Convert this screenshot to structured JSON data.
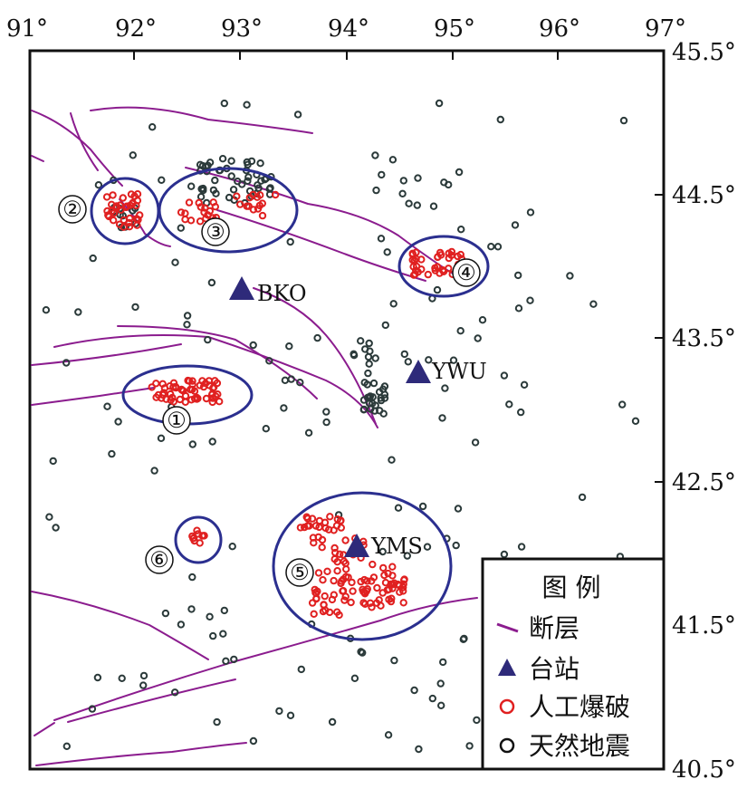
{
  "map": {
    "x_ticks": [
      "91°",
      "92°",
      "93°",
      "94°",
      "95°",
      "96°",
      "97°"
    ],
    "y_ticks": [
      "45.5°",
      "44.5°",
      "43.5°",
      "42.5°",
      "41.5°",
      "40.5°"
    ],
    "lon_range": [
      91,
      97
    ],
    "lat_range": [
      40.5,
      45.5
    ]
  },
  "colors": {
    "fault": "#8B1C8E",
    "station": "#2E2A7A",
    "explosion": "#E02020",
    "earthquake": "#2B3A3A",
    "circle": "#2B2F8F"
  },
  "legend": {
    "title": "图 例",
    "items": [
      {
        "label": "断层",
        "symbol": "fault-line"
      },
      {
        "label": "台站",
        "symbol": "triangle"
      },
      {
        "label": "人工爆破",
        "symbol": "red-circle"
      },
      {
        "label": "天然地震",
        "symbol": "black-circle"
      }
    ]
  },
  "stations": [
    {
      "name": "BKO",
      "lon": 93.0,
      "lat": 43.82
    },
    {
      "name": "YWU",
      "lon": 94.7,
      "lat": 43.27
    },
    {
      "name": "YMS",
      "lon": 94.1,
      "lat": 42.04
    }
  ],
  "regions": [
    {
      "id": "①",
      "lon": 92.45,
      "lat": 43.12
    },
    {
      "id": "②",
      "lon": 91.85,
      "lat": 44.38
    },
    {
      "id": "③",
      "lon": 93.0,
      "lat": 44.4
    },
    {
      "id": "④",
      "lon": 94.85,
      "lat": 43.98
    },
    {
      "id": "⑤",
      "lon": 94.1,
      "lat": 41.92
    },
    {
      "id": "⑥",
      "lon": 92.6,
      "lat": 42.1
    }
  ]
}
